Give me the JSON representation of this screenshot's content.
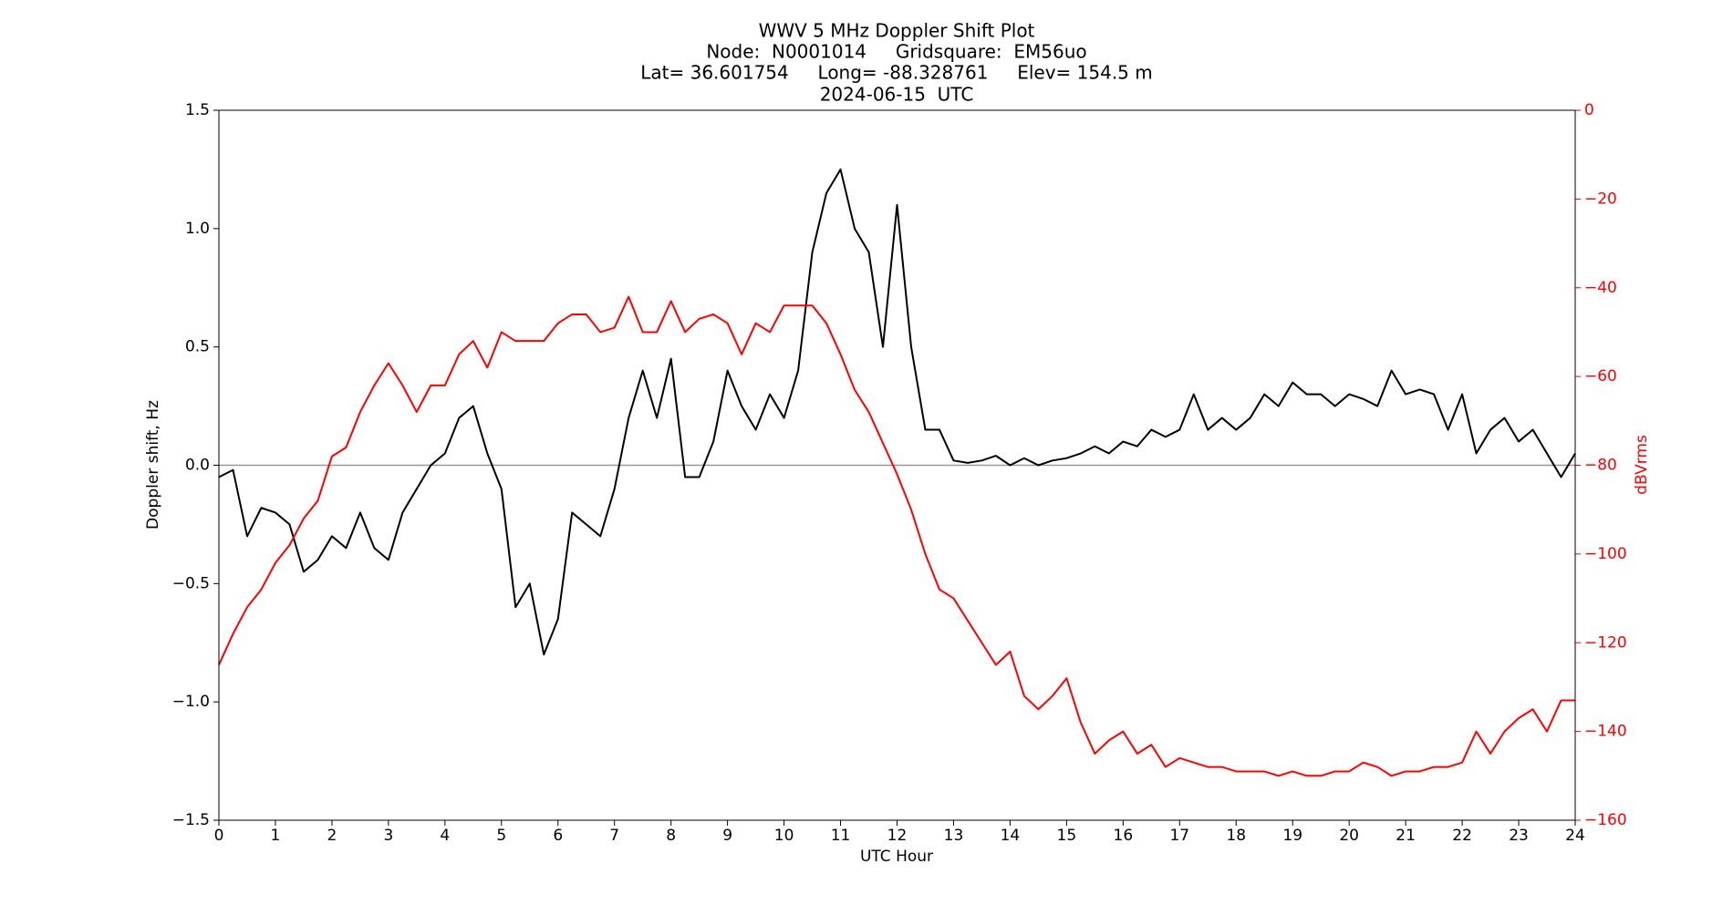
{
  "chart_data": {
    "type": "line",
    "title": [
      "WWV 5 MHz Doppler Shift Plot",
      "Node:  N0001014     Gridsquare:  EM56uo",
      "Lat= 36.601754     Long= -88.328761     Elev= 154.5 m",
      "2024-06-15  UTC"
    ],
    "xlabel": "UTC Hour",
    "ylabel": "Doppler shift, Hz",
    "y2label": "dBVrms",
    "xlim": [
      0,
      24
    ],
    "xticks": [
      0,
      1,
      2,
      3,
      4,
      5,
      6,
      7,
      8,
      9,
      10,
      11,
      12,
      13,
      14,
      15,
      16,
      17,
      18,
      19,
      20,
      21,
      22,
      23,
      24
    ],
    "ylim": [
      -1.5,
      1.5
    ],
    "yticks": [
      {
        "value": -1.5,
        "label": "−1.5"
      },
      {
        "value": -1.0,
        "label": "−1.0"
      },
      {
        "value": -0.5,
        "label": "−0.5"
      },
      {
        "value": 0,
        "label": "0.0"
      },
      0.5,
      {
        "value": 1.0,
        "label": "1.0"
      },
      1.5
    ],
    "y2lim": [
      -160,
      0
    ],
    "y2ticks": [
      {
        "value": -160,
        "label": "−160"
      },
      {
        "value": -140,
        "label": "−140"
      },
      {
        "value": -120,
        "label": "−120"
      },
      {
        "value": -100,
        "label": "−100"
      },
      {
        "value": -80,
        "label": "−80"
      },
      {
        "value": -60,
        "label": "−60"
      },
      {
        "value": -40,
        "label": "−40"
      },
      {
        "value": -20,
        "label": "−20"
      },
      0
    ],
    "y2color": "#ff0000",
    "hline": 0,
    "hline_color": "#999999",
    "x": [
      0,
      0.25,
      0.5,
      0.75,
      1,
      1.25,
      1.5,
      1.75,
      2,
      2.25,
      2.5,
      2.75,
      3,
      3.25,
      3.5,
      3.75,
      4,
      4.25,
      4.5,
      4.75,
      5,
      5.25,
      5.5,
      5.75,
      6,
      6.25,
      6.5,
      6.75,
      7,
      7.25,
      7.5,
      7.75,
      8,
      8.25,
      8.5,
      8.75,
      9,
      9.25,
      9.5,
      9.75,
      10,
      10.25,
      10.5,
      10.75,
      11,
      11.25,
      11.5,
      11.75,
      12,
      12.25,
      12.5,
      12.75,
      13,
      13.25,
      13.5,
      13.75,
      14,
      14.25,
      14.5,
      14.75,
      15,
      15.25,
      15.5,
      15.75,
      16,
      16.25,
      16.5,
      16.75,
      17,
      17.25,
      17.5,
      17.75,
      18,
      18.25,
      18.5,
      18.75,
      19,
      19.25,
      19.5,
      19.75,
      20,
      20.25,
      20.5,
      20.75,
      21,
      21.25,
      21.5,
      21.75,
      22,
      22.25,
      22.5,
      22.75,
      23,
      23.25,
      23.5,
      23.75,
      24
    ],
    "series": [
      {
        "color": "#000000",
        "values": [
          -0.05,
          -0.02,
          -0.3,
          -0.18,
          -0.2,
          -0.25,
          -0.45,
          -0.4,
          -0.3,
          -0.35,
          -0.2,
          -0.35,
          -0.4,
          -0.2,
          -0.1,
          0,
          0.05,
          0.2,
          0.25,
          0.05,
          -0.1,
          -0.6,
          -0.5,
          -0.8,
          -0.65,
          -0.2,
          -0.25,
          -0.3,
          -0.1,
          0.2,
          0.4,
          0.2,
          0.45,
          -0.05,
          -0.05,
          0.1,
          0.4,
          0.25,
          0.15,
          0.3,
          0.2,
          0.4,
          0.9,
          1.15,
          1.25,
          1.0,
          0.9,
          0.5,
          1.1,
          0.5,
          0.15,
          0.15,
          0.02,
          0.01,
          0.02,
          0.04,
          0.0,
          0.03,
          0.0,
          0.02,
          0.03,
          0.05,
          0.08,
          0.05,
          0.1,
          0.08,
          0.15,
          0.12,
          0.15,
          0.3,
          0.15,
          0.2,
          0.15,
          0.2,
          0.3,
          0.25,
          0.35,
          0.3,
          0.3,
          0.25,
          0.3,
          0.28,
          0.25,
          0.4,
          0.3,
          0.32,
          0.3,
          0.15,
          0.3,
          0.05,
          0.15,
          0.2,
          0.1,
          0.15,
          0.05,
          -0.05,
          0.05
        ]
      },
      {
        "color": "#ff0000",
        "axis": "y2",
        "values": [
          -125,
          -118,
          -112,
          -108,
          -102,
          -98,
          -92,
          -88,
          -78,
          -76,
          -68,
          -62,
          -57,
          -62,
          -68,
          -62,
          -62,
          -55,
          -52,
          -58,
          -50,
          -52,
          -52,
          -52,
          -48,
          -46,
          -46,
          -50,
          -49,
          -42,
          -50,
          -50,
          -43,
          -50,
          -47,
          -46,
          -48,
          -55,
          -48,
          -50,
          -44,
          -44,
          -44,
          -48,
          -55,
          -63,
          -68,
          -75,
          -82,
          -90,
          -100,
          -108,
          -110,
          -115,
          -120,
          -125,
          -122,
          -132,
          -135,
          -132,
          -128,
          -138,
          -145,
          -142,
          -140,
          -145,
          -143,
          -148,
          -146,
          -147,
          -148,
          -148,
          -149,
          -149,
          -149,
          -150,
          -149,
          -150,
          -150,
          -149,
          -149,
          -147,
          -148,
          -150,
          -149,
          -149,
          -148,
          -148,
          -147,
          -140,
          -145,
          -140,
          -137,
          -135,
          -140,
          -133,
          -133
        ]
      }
    ]
  }
}
